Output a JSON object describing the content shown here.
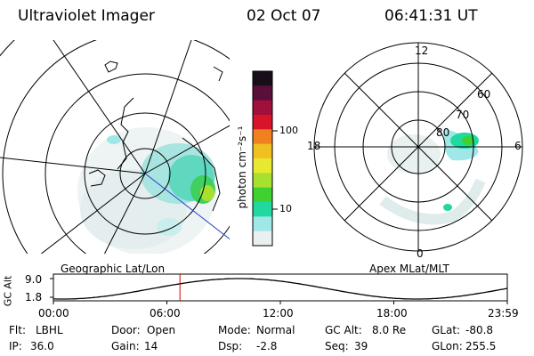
{
  "header": {
    "title": "Ultraviolet Imager",
    "date": "02 Oct 07",
    "time": "06:41:31 UT"
  },
  "colorbar": {
    "unit_label": "photon cm⁻²s⁻¹",
    "tick_labels": [
      "100",
      "10"
    ],
    "colors": [
      "#1a0d1a",
      "#5a0f3a",
      "#a0103a",
      "#d8142a",
      "#f08020",
      "#f0c020",
      "#e8e830",
      "#a8e030",
      "#40d030",
      "#20d8a0",
      "#a0e8e8",
      "#e8f0f0"
    ]
  },
  "left_map": {
    "caption": "Geographic Lat/Lon"
  },
  "right_map": {
    "caption": "Apex MLat/MLT",
    "mlt_labels": {
      "top": "12",
      "left": "18",
      "right": "6",
      "bottom": "0"
    },
    "lat_labels": [
      "60",
      "70",
      "80"
    ]
  },
  "timeline": {
    "ylabel": "GC Alt",
    "y_ticks": [
      "9.0",
      "1.8"
    ],
    "x_ticks": [
      "00:00",
      "06:00",
      "12:00",
      "18:00",
      "23:59"
    ],
    "current_time_fraction": 0.2788
  },
  "status": {
    "rows": [
      [
        {
          "label": "Flt:",
          "value": "LBHL"
        },
        {
          "label": "Door:",
          "value": "Open"
        },
        {
          "label": "Mode:",
          "value": "Normal"
        },
        {
          "label": "GC Alt:",
          "value": "8.0 Re"
        },
        {
          "label": "GLat:",
          "value": "-80.8"
        }
      ],
      [
        {
          "label": "IP:",
          "value": "36.0"
        },
        {
          "label": "Gain:",
          "value": "14"
        },
        {
          "label": "Dsp:",
          "value": "-2.8"
        },
        {
          "label": "Seq:",
          "value": "39"
        },
        {
          "label": "GLon:",
          "value": "255.5"
        }
      ]
    ]
  }
}
